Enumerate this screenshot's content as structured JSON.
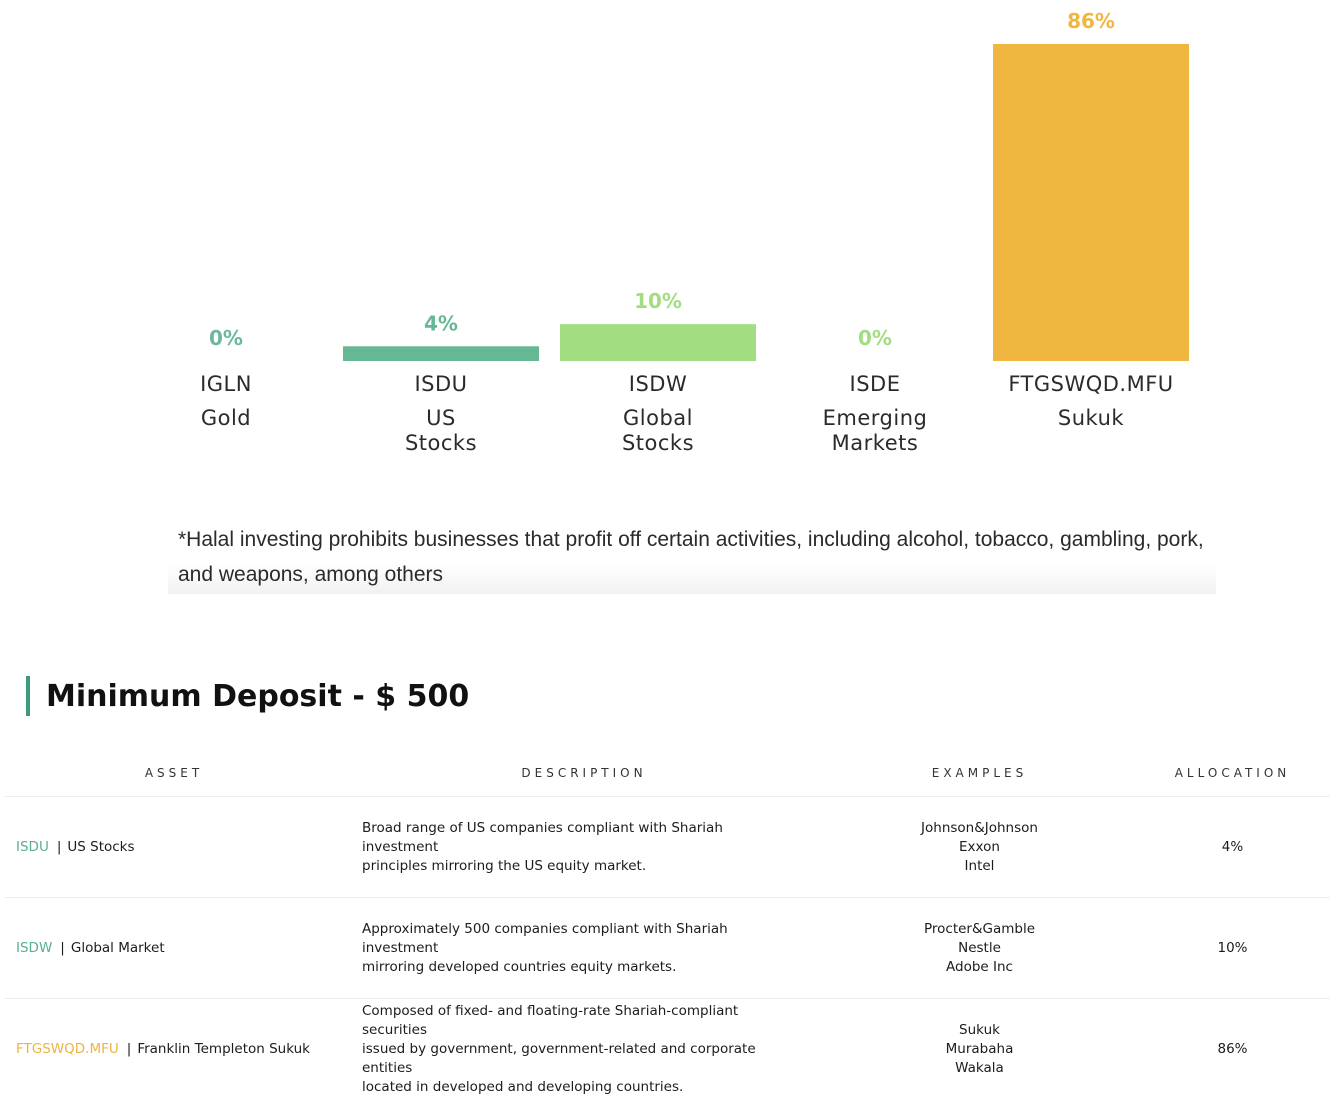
{
  "chart_data": {
    "type": "bar",
    "categories": [
      "IGLN",
      "ISDU",
      "ISDW",
      "ISDE",
      "FTGSWQD.MFU"
    ],
    "subcategories": [
      [
        "Gold"
      ],
      [
        "US",
        "Stocks"
      ],
      [
        "Global",
        "Stocks"
      ],
      [
        "Emerging",
        "Markets"
      ],
      [
        "Sukuk"
      ]
    ],
    "values": [
      0,
      4,
      10,
      0,
      86
    ],
    "value_labels": [
      "0%",
      "4%",
      "10%",
      "0%",
      "86%"
    ],
    "colors": [
      "#6bb89a",
      "#66b895",
      "#a3dd82",
      "#a3dd82",
      "#f0b740"
    ],
    "ylim": [
      0,
      86
    ],
    "grid": false,
    "title": "",
    "xlabel": "",
    "ylabel": ""
  },
  "footnote": "*Halal investing prohibits businesses that profit off certain activities, including alcohol, tobacco, gambling, pork, and weapons, among others",
  "heading": "Minimum Deposit - $ 500",
  "heading_accent": "#3d9a7c",
  "table": {
    "headers": [
      "ASSET",
      "DESCRIPTION",
      "EXAMPLES",
      "ALLOCATION"
    ],
    "rows": [
      {
        "ticker": "ISDU",
        "ticker_color": "#5aaf8f",
        "sep": "|",
        "name": "US Stocks",
        "description": [
          "Broad range of US companies compliant with Shariah investment",
          "principles mirroring the US equity market."
        ],
        "examples": [
          "Johnson&Johnson",
          "Exxon",
          "Intel"
        ],
        "allocation": "4%"
      },
      {
        "ticker": "ISDW",
        "ticker_color": "#5aaf8f",
        "sep": "|",
        "name": "Global Market",
        "description": [
          "Approximately 500 companies compliant with Shariah investment",
          "mirroring developed countries equity markets."
        ],
        "examples": [
          "Procter&Gamble",
          "Nestle",
          "Adobe Inc"
        ],
        "allocation": "10%"
      },
      {
        "ticker": "FTGSWQD.MFU",
        "ticker_color": "#eeb440",
        "sep": "|",
        "name": "Franklin Templeton Sukuk",
        "description": [
          "Composed of fixed- and floating-rate Shariah-compliant securities",
          "issued by government, government-related and corporate entities",
          "located in developed and developing countries."
        ],
        "examples": [
          "Sukuk",
          "Murabaha",
          "Wakala"
        ],
        "allocation": "86%"
      }
    ]
  }
}
